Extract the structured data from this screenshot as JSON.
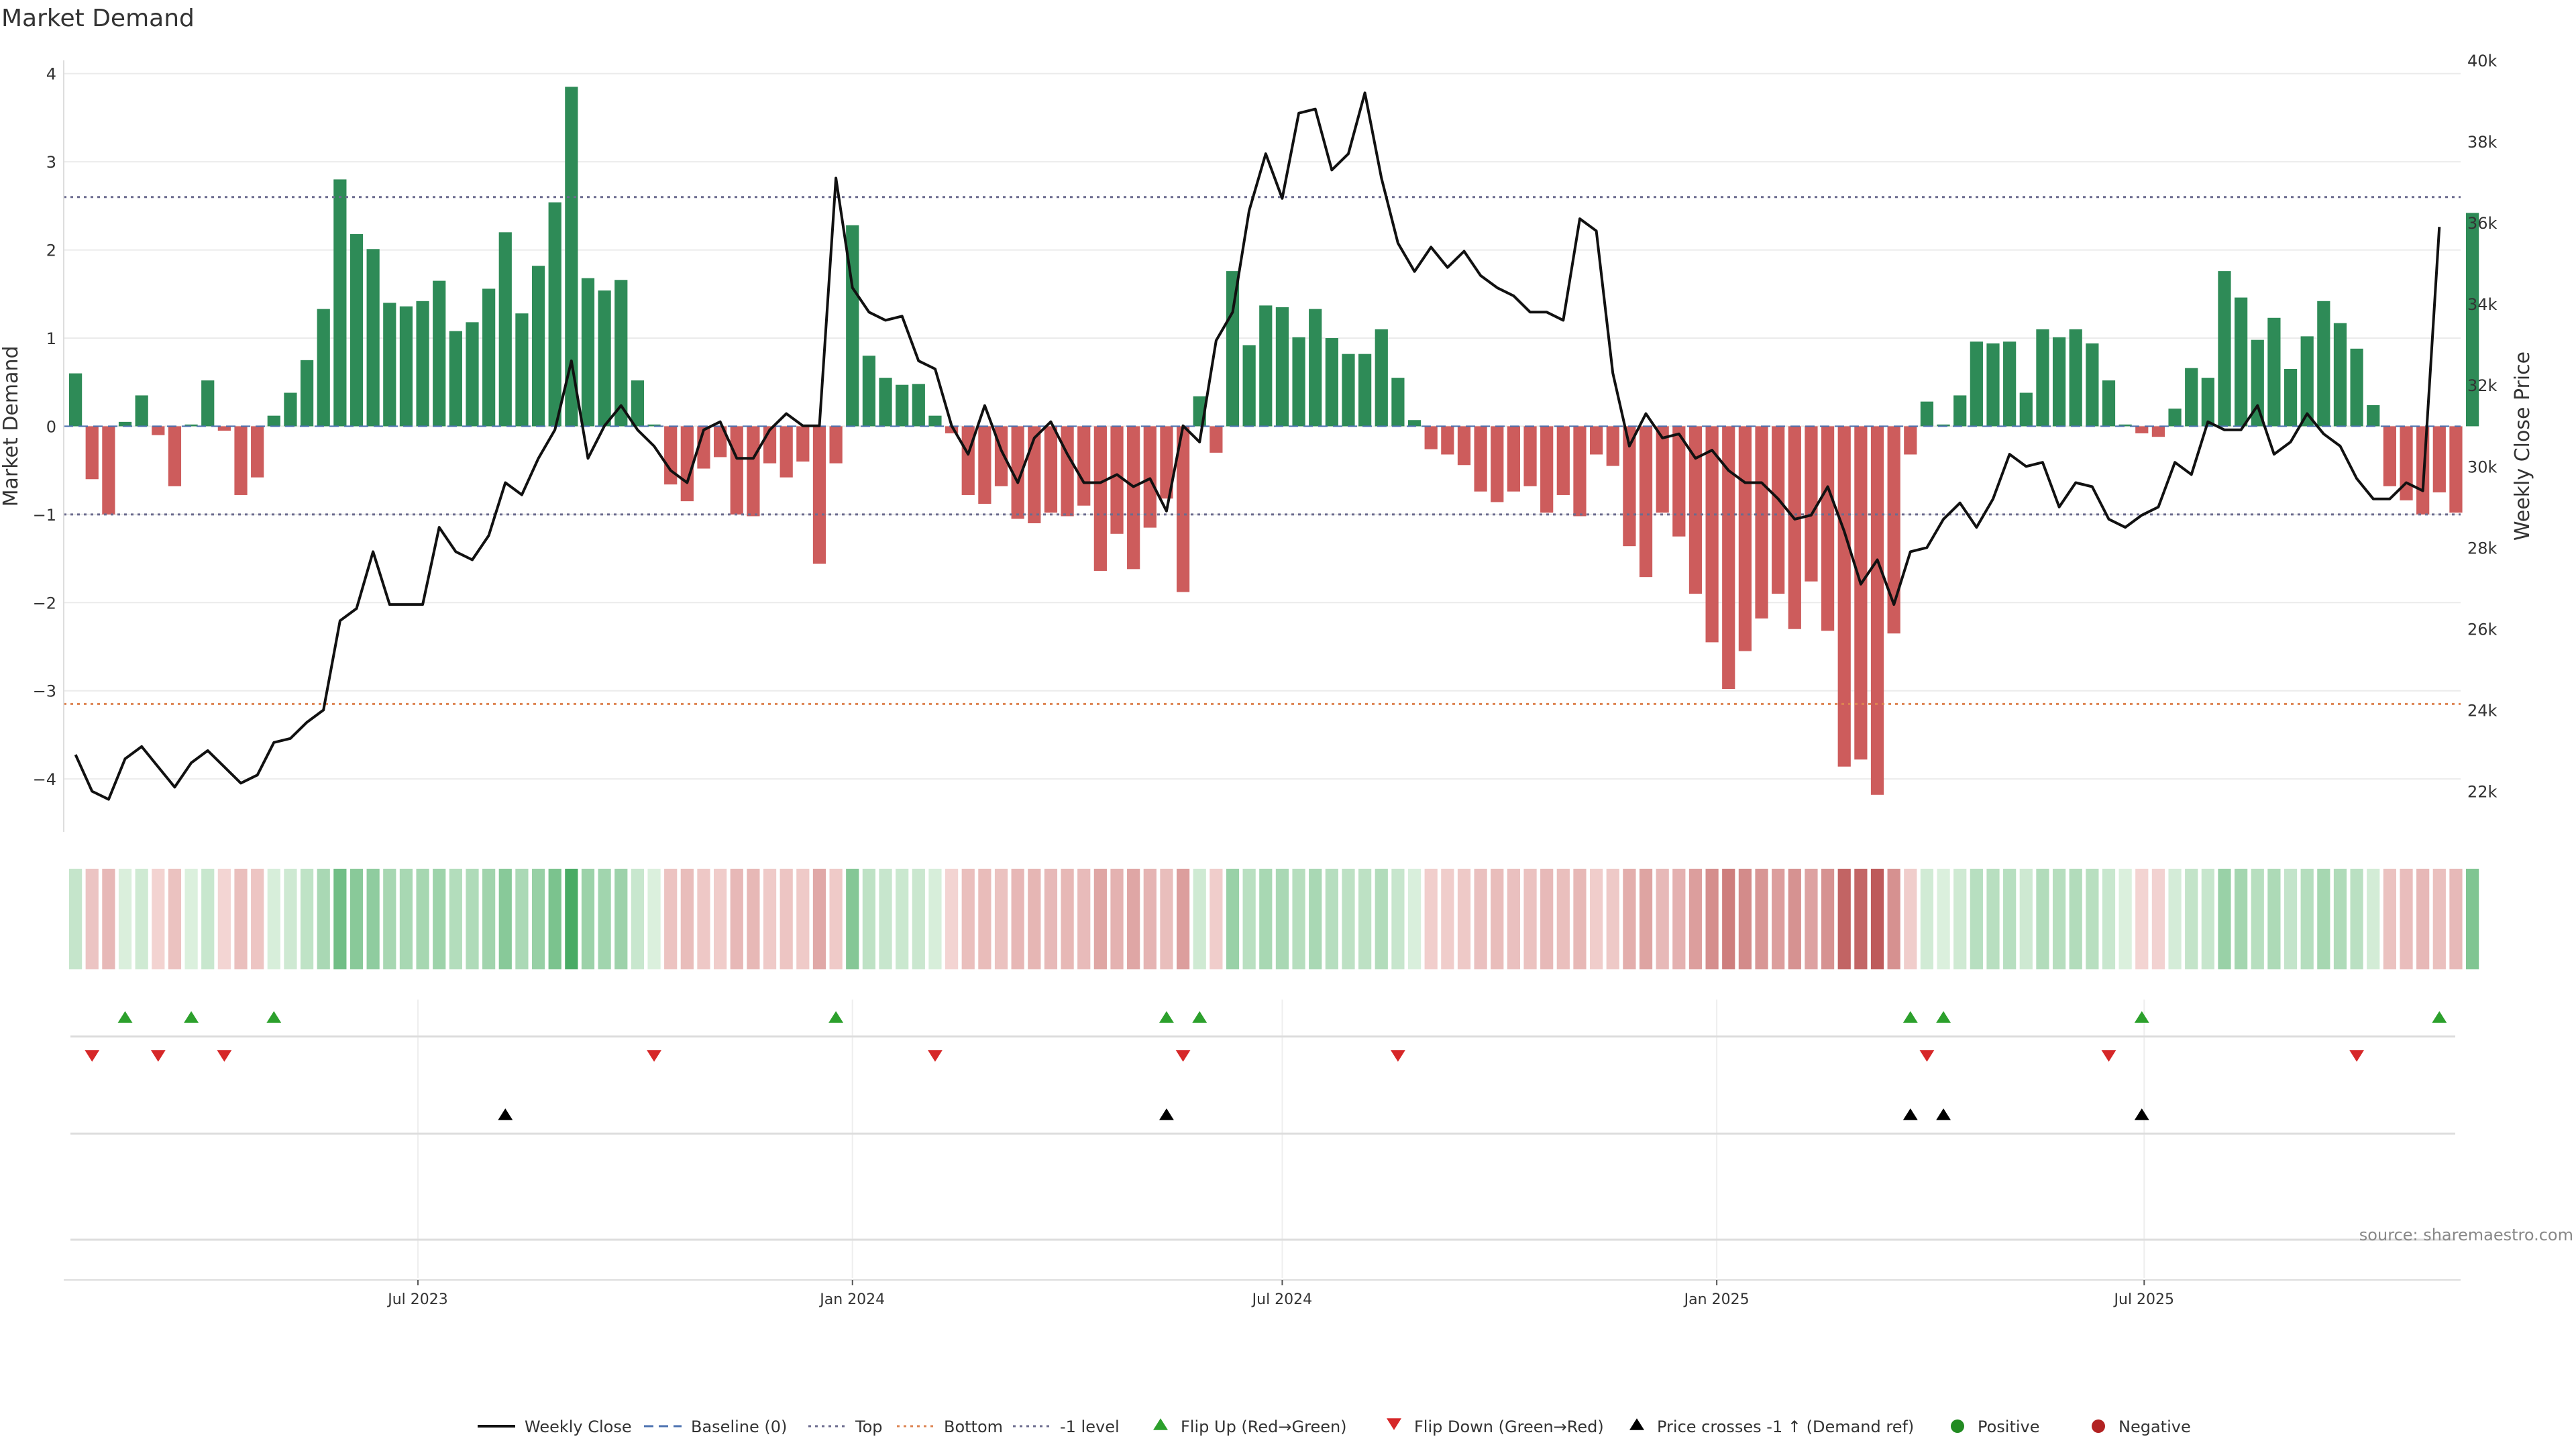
{
  "chart_data": {
    "type": "bar",
    "title": "Market Demand",
    "ylabel": "Market Demand",
    "y2label": "Weekly Close Price",
    "ylim": [
      -4.6,
      4.15
    ],
    "y2lim": [
      21000,
      40000
    ],
    "yticks": [
      -4,
      -3,
      -2,
      -1,
      0,
      1,
      2,
      3,
      4
    ],
    "yticks_labels": [
      "−4",
      "−3",
      "−2",
      "−1",
      "0",
      "1",
      "2",
      "3",
      "4"
    ],
    "y2ticks": [
      22000,
      24000,
      26000,
      28000,
      30000,
      32000,
      34000,
      36000,
      38000,
      40000
    ],
    "y2ticks_labels": [
      "22k",
      "24k",
      "26k",
      "28k",
      "30k",
      "32k",
      "34k",
      "36k",
      "38k",
      "40k"
    ],
    "x_start": "2023-02-06",
    "x_step_days": 7,
    "x_range": [
      "2023-02-01",
      "2025-11-12"
    ],
    "date_ticks": [
      {
        "date": "2023-07-01",
        "label": "Jul 2023"
      },
      {
        "date": "2024-01-01",
        "label": "Jan 2024"
      },
      {
        "date": "2024-07-01",
        "label": "Jul 2024"
      },
      {
        "date": "2025-01-01",
        "label": "Jan 2025"
      },
      {
        "date": "2025-07-01",
        "label": "Jul 2025"
      }
    ],
    "reference_lines": {
      "top": 2.6,
      "bottom": -3.15,
      "minus_one": -1,
      "baseline": 0
    },
    "demand": [
      0.6,
      -0.6,
      -1.0,
      0.05,
      0.35,
      -0.1,
      -0.68,
      0.02,
      0.52,
      -0.05,
      -0.78,
      -0.58,
      0.12,
      0.38,
      0.75,
      1.33,
      2.8,
      2.18,
      2.01,
      1.4,
      1.36,
      1.42,
      1.65,
      1.08,
      1.18,
      1.56,
      2.2,
      1.28,
      1.82,
      2.54,
      3.85,
      1.68,
      1.54,
      1.66,
      0.52,
      0.02,
      -0.66,
      -0.85,
      -0.48,
      -0.35,
      -1.0,
      -1.02,
      -0.42,
      -0.58,
      -0.4,
      -1.56,
      -0.42,
      2.28,
      0.8,
      0.55,
      0.47,
      0.48,
      0.12,
      -0.08,
      -0.78,
      -0.88,
      -0.68,
      -1.05,
      -1.1,
      -0.98,
      -1.02,
      -0.9,
      -1.64,
      -1.22,
      -1.62,
      -1.15,
      -0.82,
      -1.88,
      0.34,
      -0.3,
      1.76,
      0.92,
      1.37,
      1.35,
      1.01,
      1.33,
      1.0,
      0.82,
      0.82,
      1.1,
      0.55,
      0.07,
      -0.26,
      -0.32,
      -0.44,
      -0.74,
      -0.86,
      -0.74,
      -0.68,
      -0.98,
      -0.78,
      -1.02,
      -0.32,
      -0.45,
      -1.36,
      -1.71,
      -0.98,
      -1.25,
      -1.9,
      -2.45,
      -2.98,
      -2.55,
      -2.18,
      -1.9,
      -2.3,
      -1.76,
      -2.32,
      -3.86,
      -3.78,
      -4.18,
      -2.35,
      -0.32,
      0.28,
      0.02,
      0.35,
      0.96,
      0.94,
      0.96,
      0.38,
      1.1,
      1.01,
      1.1,
      0.94,
      0.52,
      0.02,
      -0.08,
      -0.12,
      0.2,
      0.66,
      0.55,
      1.76,
      1.46,
      0.98,
      1.23,
      0.65,
      1.02,
      1.42,
      1.17,
      0.88,
      0.24,
      -0.68,
      -0.84,
      -1.0,
      -0.75,
      -0.98,
      2.42
    ],
    "close": [
      22900,
      22000,
      21800,
      22800,
      23100,
      22600,
      22100,
      22700,
      23000,
      22600,
      22200,
      22400,
      23200,
      23300,
      23700,
      24000,
      26200,
      26500,
      27900,
      26600,
      26600,
      26600,
      28500,
      27900,
      27700,
      28300,
      29600,
      29300,
      30200,
      30900,
      32600,
      30200,
      31000,
      31500,
      30900,
      30500,
      29900,
      29600,
      30900,
      31100,
      30200,
      30200,
      30900,
      31300,
      31000,
      31000,
      37100,
      34400,
      33800,
      33600,
      33700,
      32600,
      32400,
      31000,
      30300,
      31500,
      30400,
      29600,
      30700,
      31100,
      30300,
      29600,
      29600,
      29800,
      29500,
      29700,
      28900,
      31000,
      30600,
      33100,
      33800,
      36300,
      37700,
      36600,
      38700,
      38800,
      37300,
      37700,
      39200,
      37100,
      35500,
      34800,
      35400,
      34900,
      35300,
      34700,
      34400,
      34200,
      33800,
      33800,
      33600,
      36100,
      35800,
      32300,
      30500,
      31300,
      30700,
      30800,
      30200,
      30400,
      29900,
      29600,
      29600,
      29200,
      28700,
      28800,
      29500,
      28400,
      27100,
      27700,
      26600,
      27900,
      28000,
      28700,
      29100,
      28500,
      29200,
      30300,
      30000,
      30100,
      29000,
      29600,
      29500,
      28700,
      28500,
      28800,
      29000,
      30100,
      29800,
      31100,
      30900,
      30900,
      31500,
      30300,
      30600,
      31300,
      30800,
      30500,
      29700,
      29200,
      29200,
      29600,
      29400,
      35900
    ]
  },
  "panels": {
    "flip_up_weeks": [
      3,
      7,
      12,
      46,
      66,
      68,
      111,
      113,
      125,
      143
    ],
    "flip_down_weeks": [
      1,
      5,
      9,
      35,
      52,
      67,
      80,
      112,
      123,
      138
    ],
    "price_cross_weeks": [
      26,
      66,
      111,
      113,
      125
    ]
  },
  "legend": [
    {
      "label": "Weekly Close",
      "symbol": "line",
      "color": "#111111"
    },
    {
      "label": "Baseline (0)",
      "symbol": "dash",
      "color": "#4c72b0"
    },
    {
      "label": "Top",
      "symbol": "dot",
      "color": "#6b6b8e"
    },
    {
      "label": "Bottom",
      "symbol": "dot",
      "color": "#dd8452"
    },
    {
      "label": "-1 level",
      "symbol": "dot",
      "color": "#6b6b8e"
    },
    {
      "label": "Flip Up (Red→Green)",
      "symbol": "tri-up",
      "color": "#2ca02c"
    },
    {
      "label": "Flip Down (Green→Red)",
      "symbol": "tri-down",
      "color": "#d62728"
    },
    {
      "label": "Price crosses -1 ↑ (Demand ref)",
      "symbol": "tri-up",
      "color": "#000000"
    },
    {
      "label": "Positive",
      "symbol": "circle",
      "color": "#228b22"
    },
    {
      "label": "Negative",
      "symbol": "circle",
      "color": "#b22222"
    }
  ],
  "source": "source: sharemaestro.com",
  "colors": {
    "positive_bar": "#2e8b57",
    "negative_bar": "#cd5c5c",
    "price_line": "#111111",
    "grid": "#ebebeb"
  }
}
